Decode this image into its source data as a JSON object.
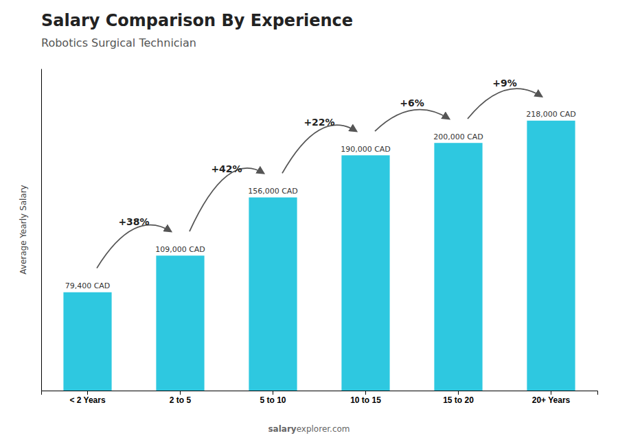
{
  "chart_data": {
    "type": "bar",
    "title": "Salary Comparison By Experience",
    "subtitle": "Robotics Surgical Technician",
    "ylabel": "Average Yearly Salary",
    "categories": [
      "< 2 Years",
      "2 to 5",
      "5 to 10",
      "10 to 15",
      "15 to 20",
      "20+ Years"
    ],
    "values": [
      79400,
      109000,
      156000,
      190000,
      200000,
      218000
    ],
    "value_labels": [
      "79,400 CAD",
      "109,000 CAD",
      "156,000 CAD",
      "190,000 CAD",
      "200,000 CAD",
      "218,000 CAD"
    ],
    "data_labels": true,
    "annotations": [
      "+38%",
      "+42%",
      "+22%",
      "+6%",
      "+9%"
    ],
    "watermark": [
      "salary",
      "explorer.com"
    ],
    "color": "#2ec8e0",
    "ylim": [
      0,
      260000
    ],
    "tick_labels": "x"
  }
}
